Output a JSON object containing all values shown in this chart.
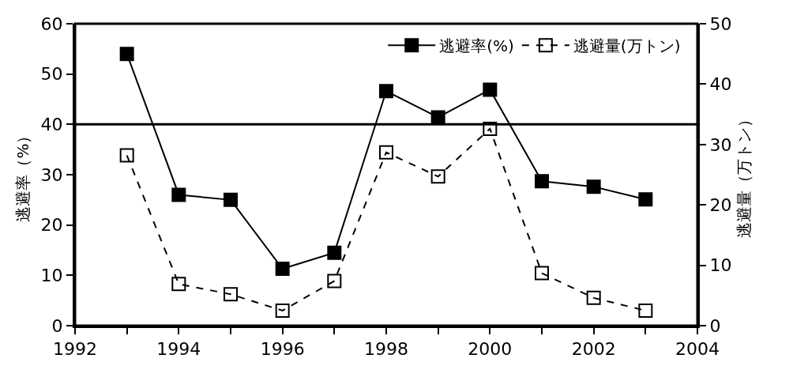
{
  "chart_data": {
    "type": "line",
    "xlabel": null,
    "ylabel": "逃避率（%）",
    "y2label": "逃避量（万トン）",
    "x": [
      1993,
      1994,
      1995,
      1996,
      1997,
      1998,
      1999,
      2000,
      2001,
      2002,
      2003
    ],
    "series": [
      {
        "name": "逃避率(%)",
        "color": "#000000",
        "values": [
          54,
          26,
          25,
          11.3,
          14.5,
          46.6,
          41.4,
          46.9,
          28.7,
          27.6,
          25.1
        ],
        "marker": "square",
        "line_style": "solid"
      },
      {
        "name": "逃避量(万トン)",
        "color": "#000000",
        "axis": "y2",
        "values": [
          28.2,
          6.9,
          5.2,
          2.5,
          7.4,
          28.7,
          24.7,
          32.6,
          8.7,
          4.6,
          2.5
        ],
        "marker": "square-open",
        "line_style": "dashed"
      }
    ],
    "xlim": [
      1992,
      2004
    ],
    "xticks": [
      1992,
      {
        "value": 1993,
        "label": null
      },
      1994,
      {
        "value": 1995,
        "label": null
      },
      1996,
      {
        "value": 1997,
        "label": null
      },
      1998,
      {
        "value": 1999,
        "label": null
      },
      2000,
      {
        "value": 2001,
        "label": null
      },
      2002,
      {
        "value": 2003,
        "label": null
      },
      2004
    ],
    "ylim": [
      0,
      60
    ],
    "yticks": [
      0,
      10,
      20,
      30,
      40,
      50,
      60
    ],
    "y2lim": [
      0,
      50
    ],
    "y2ticks": [
      0,
      10,
      20,
      30,
      40,
      50
    ],
    "ref_lines": [
      {
        "axis": "y",
        "value": 40,
        "color": "#000000"
      }
    ],
    "grid": false,
    "legend": "top right"
  }
}
